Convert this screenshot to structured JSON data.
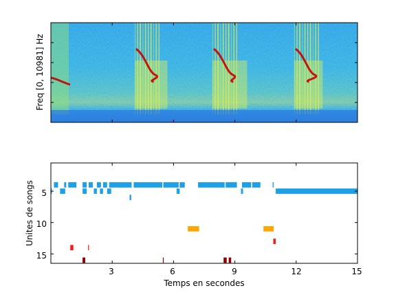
{
  "chart_data": [
    {
      "type": "heatmap",
      "title": "",
      "ylabel": "Freq [0, 10981] Hz",
      "xlabel": "",
      "xlim": [
        0,
        15
      ],
      "grid": false,
      "description_colormap": "jet",
      "vertical_band_sweep_segments_s": [
        [
          0.0,
          0.8,
          "descending whistle at end"
        ],
        [
          4.1,
          5.7,
          "descending sweep"
        ],
        [
          7.9,
          9.6,
          "descending sweep"
        ],
        [
          11.9,
          13.3,
          "descending sweep"
        ]
      ]
    },
    {
      "type": "scatter",
      "title": "",
      "xlabel": "Temps en secondes",
      "ylabel": "Unites de songs",
      "xlim": [
        0,
        15
      ],
      "ylim": [
        16.5,
        0.5
      ],
      "y_reversed": true,
      "grid": false,
      "xticks": [
        3,
        6,
        9,
        12,
        15
      ],
      "yticks": [
        5,
        10,
        15
      ],
      "series": [
        {
          "color": "#1ea0e6",
          "segments": [
            [
              4,
              0.15,
              0.35
            ],
            [
              4,
              0.65,
              0.75
            ],
            [
              4,
              0.85,
              1.25
            ],
            [
              4,
              1.55,
              1.75
            ],
            [
              4,
              1.85,
              2.05
            ],
            [
              4,
              2.25,
              2.45
            ],
            [
              4,
              2.55,
              2.75
            ],
            [
              4,
              2.85,
              3.95
            ],
            [
              4,
              4.05,
              5.45
            ],
            [
              4,
              5.5,
              6.25
            ],
            [
              4,
              6.3,
              6.55
            ],
            [
              4,
              7.2,
              8.5
            ],
            [
              4,
              8.55,
              9.1
            ],
            [
              4,
              9.35,
              9.8
            ],
            [
              4,
              9.85,
              10.25
            ],
            [
              4,
              10.85,
              10.9
            ],
            [
              5,
              0.0,
              0.05
            ],
            [
              5,
              0.45,
              0.7
            ],
            [
              5,
              1.55,
              1.75
            ],
            [
              5,
              2.1,
              2.25
            ],
            [
              5,
              2.4,
              2.55
            ],
            [
              5,
              2.75,
              2.95
            ],
            [
              5,
              6.15,
              6.3
            ],
            [
              5,
              9.3,
              9.4
            ],
            [
              5,
              11.0,
              15.0
            ],
            [
              6,
              3.85,
              3.93
            ]
          ]
        },
        {
          "color": "#ffa500",
          "segments": [
            [
              11,
              6.7,
              7.25
            ],
            [
              11,
              10.4,
              10.9
            ]
          ]
        },
        {
          "color": "#ee1c1c",
          "segments": [
            [
              13,
              10.88,
              11.0
            ],
            [
              14,
              0.95,
              1.1
            ],
            [
              14,
              1.82,
              1.86
            ]
          ]
        },
        {
          "color": "#8b0000",
          "segments": [
            [
              16,
              1.55,
              1.68
            ],
            [
              16,
              5.48,
              5.52
            ],
            [
              16,
              8.45,
              8.6
            ],
            [
              16,
              8.7,
              8.82
            ]
          ]
        }
      ]
    }
  ],
  "labels": {
    "spec_ylabel": "Freq [0, 10981] Hz",
    "seg_ylabel": "Unites de songs",
    "seg_xlabel": "Temps en secondes",
    "xtick_labels": [
      "3",
      "6",
      "9",
      "12",
      "15"
    ],
    "ytick_labels": [
      "5",
      "10",
      "15"
    ]
  }
}
